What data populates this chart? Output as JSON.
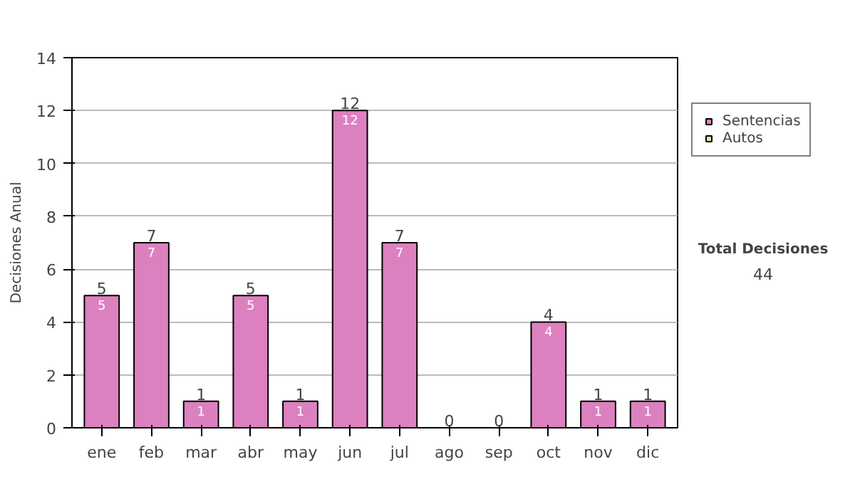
{
  "chart_data": {
    "type": "bar",
    "ylabel": "Decisiones Anual",
    "categories": [
      "ene",
      "feb",
      "mar",
      "abr",
      "may",
      "jun",
      "jul",
      "ago",
      "sep",
      "oct",
      "nov",
      "dic"
    ],
    "series": [
      {
        "name": "Sentencias",
        "color": "#dd80c0",
        "values": [
          5,
          7,
          1,
          5,
          1,
          12,
          7,
          0,
          0,
          4,
          1,
          1
        ],
        "value_labels": [
          "5",
          "7",
          "1",
          "5",
          "1",
          "12",
          "7",
          null,
          null,
          "4",
          "1",
          "1"
        ]
      },
      {
        "name": "Autos",
        "color": "#d9ee9e",
        "values": [
          0,
          0,
          0,
          0,
          0,
          0,
          0,
          0,
          0,
          0,
          0,
          0
        ]
      }
    ],
    "stacked": true,
    "totals": [
      "5",
      "7",
      "1",
      "5",
      "1",
      "12",
      "7",
      "0",
      "0",
      "4",
      "1",
      "1"
    ],
    "ylim": [
      0,
      14
    ],
    "yticks": [
      0,
      2,
      4,
      6,
      8,
      10,
      12,
      14
    ],
    "grid": "y",
    "legend": "right",
    "annotations": [
      "Total Decisiones",
      "44"
    ]
  }
}
